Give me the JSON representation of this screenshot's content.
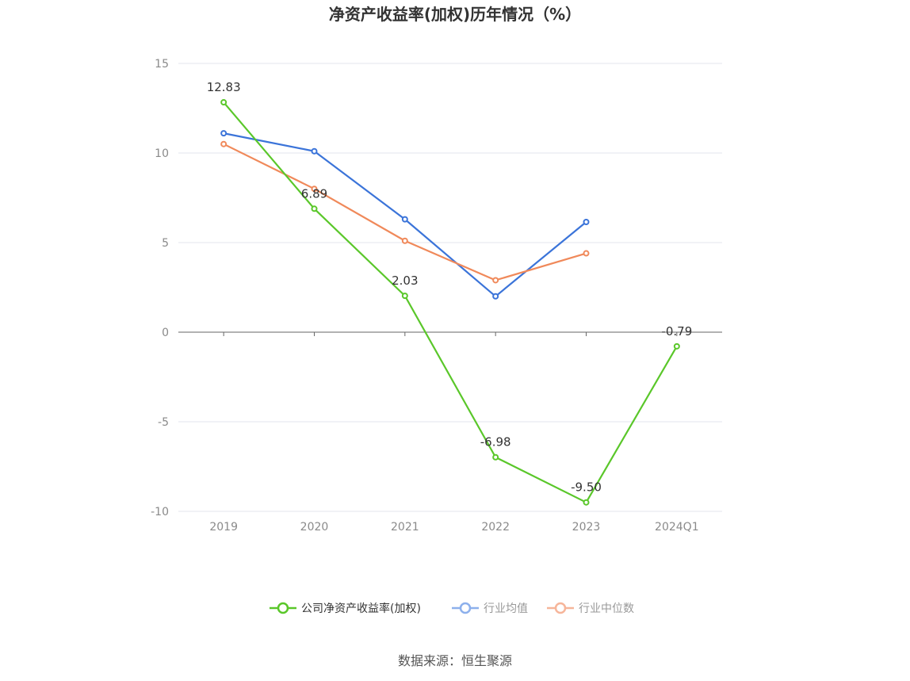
{
  "chart_data": {
    "type": "line",
    "title": "净资产收益率(加权)历年情况（%）",
    "categories": [
      "2019",
      "2020",
      "2021",
      "2022",
      "2023",
      "2024Q1"
    ],
    "ylim": [
      -10,
      15
    ],
    "yticks": [
      15,
      10,
      5,
      0,
      -5,
      -10
    ],
    "grid": true,
    "legend_position": "bottom",
    "series": [
      {
        "name": "公司净资产收益率(加权)",
        "color": "#5ac72a",
        "values": [
          12.83,
          6.89,
          2.03,
          -6.98,
          -9.5,
          -0.79
        ],
        "labels": [
          "12.83",
          "6.89",
          "2.03",
          "-6.98",
          "-9.50",
          "-0.79"
        ]
      },
      {
        "name": "行业均值",
        "color": "#3b74d9",
        "legend_color": "#8db0ec",
        "values": [
          11.1,
          10.1,
          6.3,
          2.0,
          6.15,
          null
        ]
      },
      {
        "name": "行业中位数",
        "color": "#f0895a",
        "legend_color": "#f6b59a",
        "values": [
          10.5,
          8.0,
          5.1,
          2.9,
          4.4,
          null
        ]
      }
    ]
  },
  "source": "数据来源：恒生聚源"
}
